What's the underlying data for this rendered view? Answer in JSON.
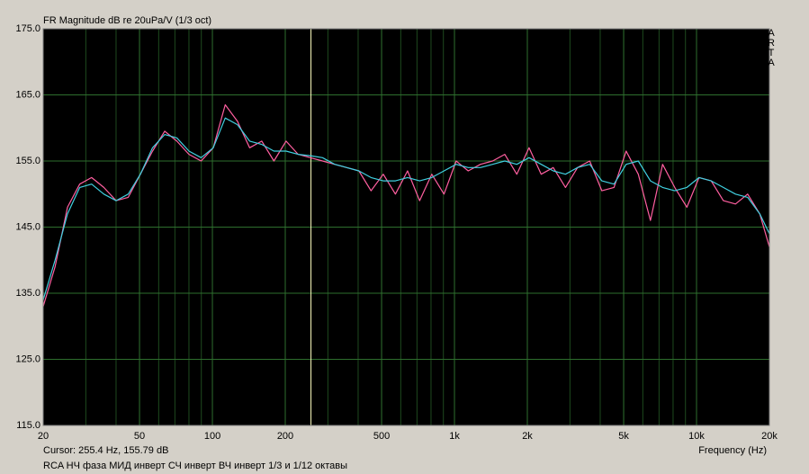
{
  "chart_data": {
    "type": "line",
    "title": "FR Magnitude dB re 20uPa/V (1/3 oct)",
    "x_label": "Frequency (Hz)",
    "caption": "RCA НЧ фаза МИД инверт СЧ инверт ВЧ инверт 1/3 и 1/12 октавы",
    "brand": "ARTA",
    "cursor": {
      "label": "Cursor: 255.4 Hz, 155.79 dB",
      "x": 255.4,
      "color": "#ffffc0"
    },
    "x_log": true,
    "grid": true,
    "xlim": [
      20,
      20000
    ],
    "ylim": [
      115,
      175
    ],
    "xticks": [
      20,
      50,
      100,
      200,
      500,
      {
        "value": 1000,
        "label": "1k"
      },
      {
        "value": 2000,
        "label": "2k"
      },
      {
        "value": 5000,
        "label": "5k"
      },
      {
        "value": 10000,
        "label": "10k"
      },
      {
        "value": 20000,
        "label": "20k"
      }
    ],
    "yticks": [
      {
        "value": 115,
        "label": "115.0"
      },
      {
        "value": 125,
        "label": "125.0"
      },
      {
        "value": 135,
        "label": "135.0"
      },
      {
        "value": 145,
        "label": "145.0"
      },
      {
        "value": 155,
        "label": "155.0"
      },
      {
        "value": 165,
        "label": "165.0"
      },
      {
        "value": 175,
        "label": "175.0"
      }
    ],
    "x": [
      20,
      22.4,
      25.2,
      28.3,
      31.7,
      35.6,
      40,
      44.9,
      50.4,
      56.6,
      63.5,
      71.3,
      80,
      89.8,
      100.8,
      113,
      127,
      142.5,
      160,
      179.6,
      201.6,
      226,
      254,
      285,
      320,
      359,
      403,
      452,
      508,
      570,
      640,
      718,
      806,
      905,
      1016,
      1140,
      1280,
      1437,
      1613,
      1810,
      2032,
      2281,
      2560,
      2874,
      3225,
      3620,
      4064,
      4561,
      5120,
      5747,
      6451,
      7241,
      8128,
      9123,
      10240,
      11494,
      12902,
      14482,
      16256,
      18247,
      20000
    ],
    "series": [
      {
        "color": "#ff5fa0",
        "values": [
          133,
          139,
          148,
          151.5,
          152.5,
          151,
          149,
          149.5,
          153,
          156.5,
          159.5,
          158,
          156,
          155,
          157,
          163.5,
          161,
          157,
          158,
          155,
          158,
          156,
          155.5,
          155,
          154.5,
          154,
          153.5,
          150.5,
          153,
          150,
          153.5,
          149,
          153,
          150,
          155,
          153.5,
          154.5,
          155,
          156,
          153,
          157,
          153,
          154,
          151,
          154,
          155,
          150.5,
          151,
          156.5,
          153,
          146,
          154.5,
          151,
          148,
          152.5,
          152,
          149,
          148.5,
          150,
          147,
          142
        ]
      },
      {
        "color": "#40d0e0",
        "values": [
          134,
          140,
          147,
          151,
          151.5,
          150,
          149,
          150,
          153,
          157,
          159,
          158.5,
          156.5,
          155.5,
          157,
          161.5,
          160.5,
          158,
          157.5,
          156.5,
          156.5,
          156,
          155.8,
          155.5,
          154.5,
          154,
          153.5,
          152.5,
          152,
          152,
          152.5,
          152,
          152.5,
          153.5,
          154.5,
          154,
          154,
          154.5,
          155,
          154.5,
          155.5,
          154.5,
          153.5,
          153,
          154,
          154.5,
          152,
          151.5,
          154.5,
          155,
          152,
          151,
          150.5,
          151,
          152.5,
          152,
          151,
          150,
          149.5,
          147,
          144
        ]
      }
    ]
  }
}
